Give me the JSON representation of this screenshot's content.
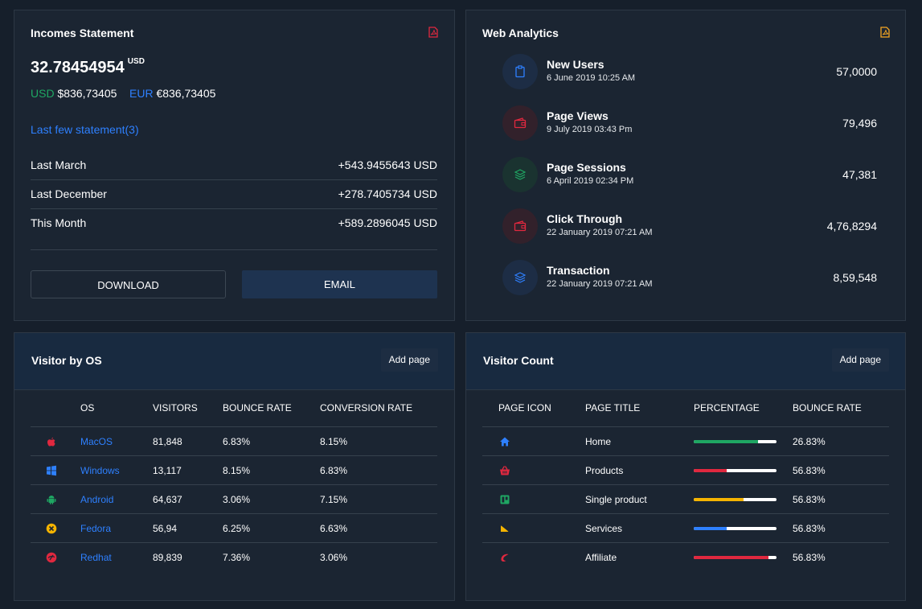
{
  "incomes": {
    "title": "Incomes Statement",
    "amount": "32.78454954",
    "amount_unit": "USD",
    "usd_label": "USD",
    "usd_value": "$836,73405",
    "eur_label": "EUR",
    "eur_value": "€836,73405",
    "link": "Last few statement(3)",
    "rows": [
      {
        "label": "Last March",
        "value": "+543.9455643 USD"
      },
      {
        "label": "Last December",
        "value": "+278.7405734 USD"
      },
      {
        "label": "This Month",
        "value": "+589.2896045 USD"
      }
    ],
    "download_label": "DOWNLOAD",
    "email_label": "EMAIL"
  },
  "analytics": {
    "title": "Web Analytics",
    "items": [
      {
        "title": "New Users",
        "date": "6 June 2019 10:25 AM",
        "value": "57,0000",
        "icon": "clipboard-icon",
        "color": "#2e80ff"
      },
      {
        "title": "Page Views",
        "date": "9 July 2019 03:43 Pm",
        "value": "79,496",
        "icon": "wallet-icon",
        "color": "#e0283f"
      },
      {
        "title": "Page Sessions",
        "date": "6 April 2019 02:34 PM",
        "value": "47,381",
        "icon": "layers-icon",
        "color": "#1fa763"
      },
      {
        "title": "Click Through",
        "date": "22 January 2019 07:21 AM",
        "value": "4,76,8294",
        "icon": "wallet-icon",
        "color": "#e0283f"
      },
      {
        "title": "Transaction",
        "date": "22 January 2019 07:21 AM",
        "value": "8,59,548",
        "icon": "layers-icon",
        "color": "#2e80ff"
      }
    ]
  },
  "visitor_os": {
    "title": "Visitor by OS",
    "add_page": "Add page",
    "columns": [
      "OS",
      "VISITORS",
      "BOUNCE RATE",
      "CONVERSION RATE"
    ],
    "rows": [
      {
        "icon": "apple-icon",
        "color": "#e0283f",
        "os": "MacOS",
        "visitors": "81,848",
        "bounce": "6.83%",
        "conversion": "8.15%"
      },
      {
        "icon": "windows-icon",
        "color": "#2e80ff",
        "os": "Windows",
        "visitors": "13,117",
        "bounce": "8.15%",
        "conversion": "6.83%"
      },
      {
        "icon": "android-icon",
        "color": "#1fa763",
        "os": "Android",
        "visitors": "64,637",
        "bounce": "3.06%",
        "conversion": "7.15%"
      },
      {
        "icon": "fedora-icon",
        "color": "#f5b400",
        "os": "Fedora",
        "visitors": "56,94",
        "bounce": "6.25%",
        "conversion": "6.63%"
      },
      {
        "icon": "redhat-icon",
        "color": "#e0283f",
        "os": "Redhat",
        "visitors": "89,839",
        "bounce": "7.36%",
        "conversion": "3.06%"
      }
    ]
  },
  "visitor_count": {
    "title": "Visitor Count",
    "add_page": "Add page",
    "columns": [
      "PAGE ICON",
      "PAGE TITLE",
      "PERCENTAGE",
      "BOUNCE RATE"
    ],
    "rows": [
      {
        "icon": "home-icon",
        "color": "#2e80ff",
        "title": "Home",
        "percent": 0.78,
        "bar_color": "#1fa763",
        "bounce": "26.83%"
      },
      {
        "icon": "basket-icon",
        "color": "#e0283f",
        "title": "Products",
        "percent": 0.4,
        "bar_color": "#e0283f",
        "bounce": "56.83%"
      },
      {
        "icon": "trello-icon",
        "color": "#1fa763",
        "title": "Single product",
        "percent": 0.6,
        "bar_color": "#f5b400",
        "bounce": "56.83%"
      },
      {
        "icon": "services-icon",
        "color": "#f5b400",
        "title": "Services",
        "percent": 0.4,
        "bar_color": "#2e80ff",
        "bounce": "56.83%"
      },
      {
        "icon": "affiliate-icon",
        "color": "#e0283f",
        "title": "Affiliate",
        "percent": 0.9,
        "bar_color": "#e0283f",
        "bounce": "56.83%"
      }
    ]
  }
}
